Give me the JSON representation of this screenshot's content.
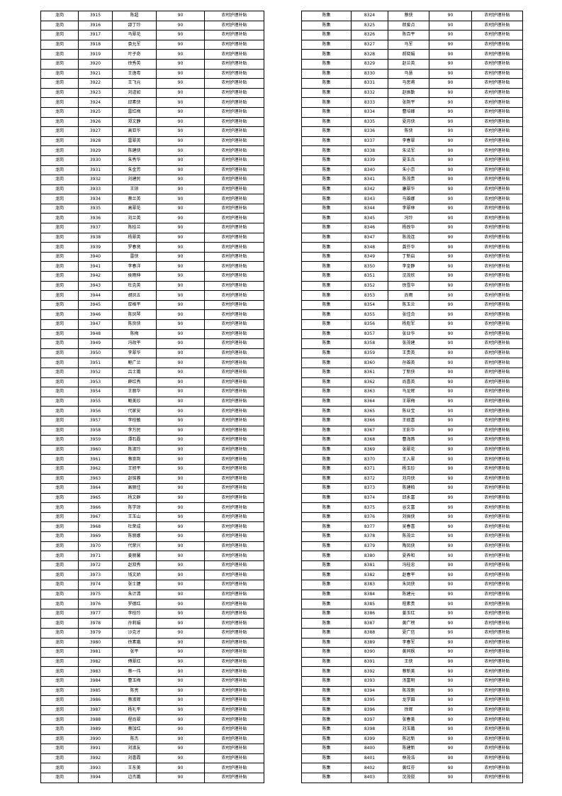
{
  "left_table": {
    "district": "龙岗",
    "amount": "90",
    "subsidy_type": "农村护理补贴",
    "start_id": 3915,
    "names": [
      "陈超",
      "邵丁玲",
      "马翠花",
      "袁允军",
      "叶子奇",
      "徐秀英",
      "王逸粤",
      "王飞元",
      "刘道如",
      "邱素侠",
      "雷红梅",
      "郑文静",
      "高亚华",
      "雷翠英",
      "陈建侠",
      "朱秀华",
      "朱金芳",
      "刘建民",
      "王琼",
      "蔡兰英",
      "高翠花",
      "刘兰英",
      "陈桂兰",
      "杨翠英",
      "罗春贤",
      "雷侠",
      "李春洋",
      "侯雨伸",
      "杜克英",
      "胡凤五",
      "厚格平",
      "陈凤琴",
      "陈良侠",
      "陈梅",
      "冯改平",
      "李翠华",
      "鲍广兰",
      "吕士娥",
      "薛红秀",
      "王丽华",
      "鲍美珍",
      "代家安",
      "李桂敏",
      "李万民",
      "谭石磊",
      "陈淑玲",
      "蔡崇荆",
      "王旭平",
      "赵铭蓉",
      "高丽佳",
      "杨文群",
      "陈学琼",
      "王玉山",
      "杜荣成",
      "陈丽娜",
      "代荣兴",
      "姜丽馨",
      "赵双秀",
      "钱文娇",
      "张士婕",
      "朱计清",
      "罗德红",
      "李桂玲",
      "孙莉娟",
      "沙克才",
      "徐素娥",
      "张平",
      "傅翠红",
      "蔡一伟",
      "曹玉梅",
      "陈亮",
      "蔡淑辉",
      "杨礼平",
      "程尚翠",
      "蔡加红",
      "陈杰",
      "刘淑友",
      "刘喜霞",
      "王东美",
      "边杰娥"
    ]
  },
  "right_table": {
    "district": "陈集",
    "amount": "90",
    "subsidy_type": "农村护理补贴",
    "start_id": 8324,
    "names": [
      "蔡侠",
      "郎爱点",
      "陈百平",
      "马军",
      "郝晓娟",
      "赵兰英",
      "马慧",
      "马思甫",
      "赵振勤",
      "张荆平",
      "曹培峰",
      "夏月侠",
      "陈侠",
      "李春翠",
      "朱法军",
      "夏玉兵",
      "朱小京",
      "陈茂贵",
      "康翠华",
      "马雄娜",
      "李翠林",
      "冯玲",
      "杨改华",
      "陈茂连",
      "龚芬华",
      "丁新启",
      "李金静",
      "沈茂欣",
      "徐雪华",
      "尚雨",
      "陈玉兰",
      "张佳合",
      "杨彪军",
      "张业华",
      "张茂建",
      "王贵英",
      "孙雄英",
      "丁新侠",
      "尚喜英",
      "马龙辉",
      "王翠梅",
      "陈业宝",
      "王砚喜",
      "王彩华",
      "曹海燕",
      "张翠花",
      "王入翠",
      "杨玉珍",
      "刘月侠",
      "陈建柏",
      "邱永富",
      "谷文富",
      "刘振侠",
      "吴春喜",
      "陈茂兰",
      "陶凤侠",
      "夏养和",
      "冯桂忠",
      "赵春平",
      "朱凤侠",
      "陈建元",
      "程素贵",
      "姜玉红",
      "黄广榜",
      "夏广信",
      "李春军",
      "黄同枫",
      "王侠",
      "蔡新美",
      "汤富明",
      "陈茂刚",
      "龙学田",
      "徐辉",
      "张春美",
      "刘玉娥",
      "陈远新",
      "陈建新",
      "林茂浩",
      "黄红芬",
      "沈茂挺"
    ]
  }
}
